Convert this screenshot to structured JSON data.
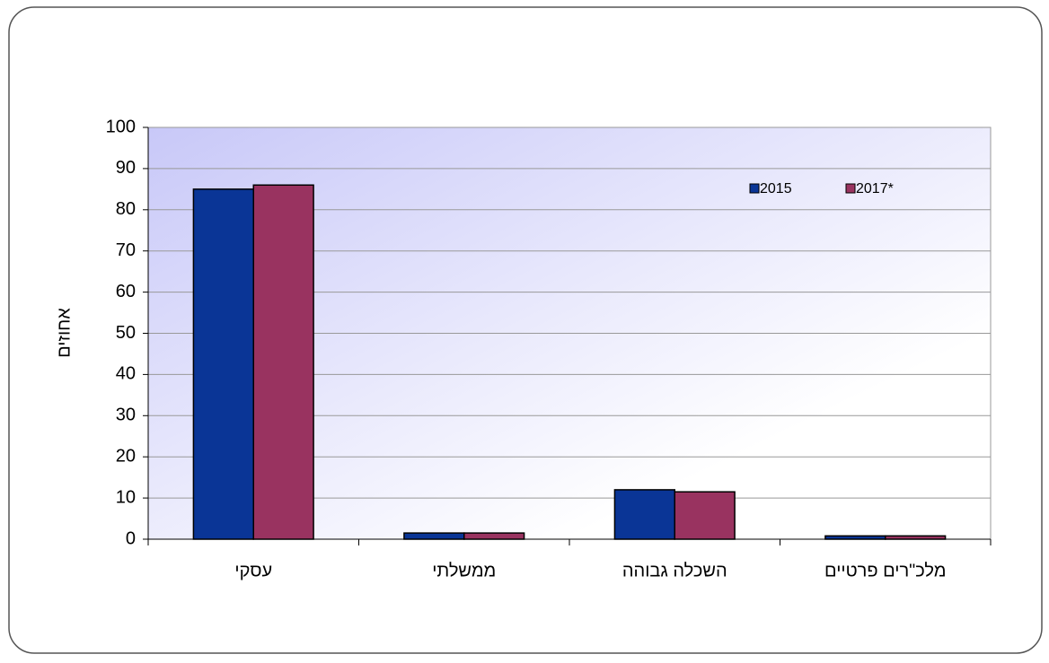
{
  "chart_data": {
    "type": "bar",
    "y_label": "אחוזים",
    "categories": [
      "עסקי",
      "ממשלתי",
      "השכלה גבוהה",
      "מלכ\"רים פרטיים"
    ],
    "series": [
      {
        "name": "2015",
        "color": "#0a3596",
        "values": [
          85,
          1.5,
          12,
          0.8
        ]
      },
      {
        "name": "2017*",
        "color": "#993360",
        "values": [
          86,
          1.5,
          11.5,
          0.8
        ]
      }
    ],
    "ylim": [
      0,
      100
    ],
    "yticks": [
      0,
      10,
      20,
      30,
      40,
      50,
      60,
      70,
      80,
      90,
      100
    ],
    "grid": true
  }
}
